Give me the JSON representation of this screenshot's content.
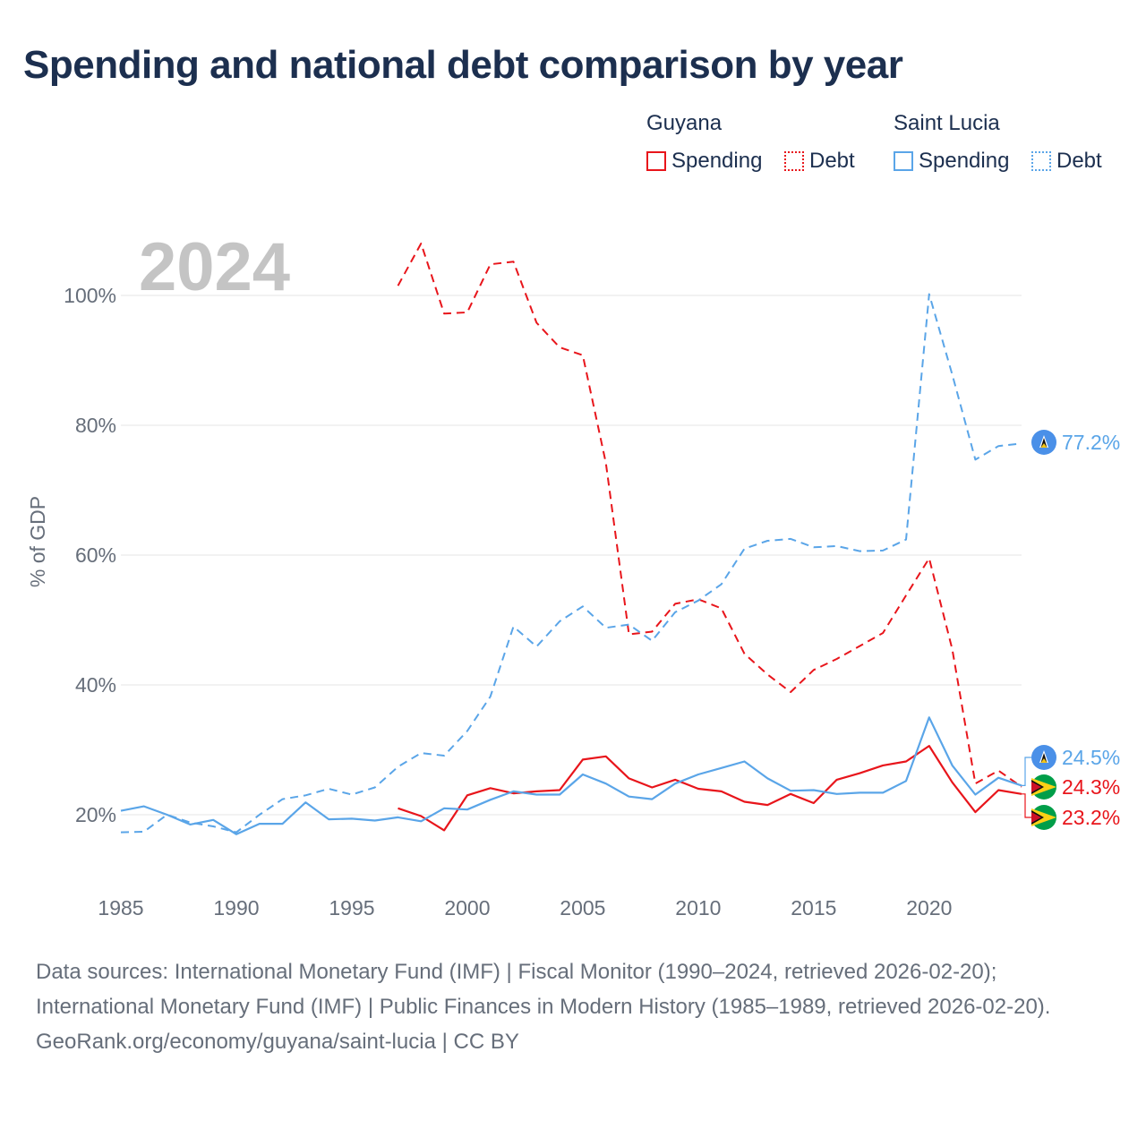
{
  "title": "Spending and national debt comparison by year",
  "legend": {
    "groups": [
      {
        "country": "Guyana",
        "spending_label": "Spending",
        "debt_label": "Debt",
        "color": "#e8151b"
      },
      {
        "country": "Saint Lucia",
        "spending_label": "Spending",
        "debt_label": "Debt",
        "color": "#5aa5e8"
      }
    ]
  },
  "year_watermark": "2024",
  "footer": {
    "sources": "Data sources: International Monetary Fund (IMF) | Fiscal Monitor (1990–2024, retrieved 2026-02-20); International Monetary Fund (IMF) | Public Finances in Modern History (1985–1989, retrieved 2026-02-20).",
    "credit": "GeoRank.org/economy/guyana/saint-lucia | CC BY"
  },
  "chart_data": {
    "type": "line",
    "title": "Spending and national debt comparison by year",
    "xlabel": "",
    "ylabel": "% of GDP",
    "xlim": [
      1985,
      2024
    ],
    "ylim": [
      10,
      110
    ],
    "x_ticks": [
      1985,
      1990,
      1995,
      2000,
      2005,
      2010,
      2015,
      2020
    ],
    "y_ticks": [
      20,
      40,
      60,
      80,
      100
    ],
    "y_tick_labels": [
      "20%",
      "40%",
      "60%",
      "80%",
      "100%"
    ],
    "grid": true,
    "series": [
      {
        "name": "Guyana Debt",
        "country": "Guyana",
        "measure": "Debt",
        "color": "#e8151b",
        "dash": true,
        "x": [
          1997,
          1998,
          1999,
          2000,
          2001,
          2002,
          2003,
          2004,
          2005,
          2006,
          2007,
          2008,
          2009,
          2010,
          2011,
          2012,
          2013,
          2014,
          2015,
          2016,
          2017,
          2018,
          2019,
          2020,
          2021,
          2022,
          2023,
          2024
        ],
        "values": [
          101.5,
          108.0,
          97.2,
          97.4,
          104.8,
          105.2,
          95.8,
          92.0,
          90.8,
          74.2,
          47.8,
          48.2,
          52.5,
          53.2,
          51.8,
          44.8,
          41.6,
          38.9,
          42.3,
          44.0,
          46.0,
          48.0,
          53.8,
          59.5,
          45.5,
          24.8,
          26.8,
          24.3
        ]
      },
      {
        "name": "Guyana Spending",
        "country": "Guyana",
        "measure": "Spending",
        "color": "#e8151b",
        "dash": false,
        "x": [
          1997,
          1998,
          1999,
          2000,
          2001,
          2002,
          2003,
          2004,
          2005,
          2006,
          2007,
          2008,
          2009,
          2010,
          2011,
          2012,
          2013,
          2014,
          2015,
          2016,
          2017,
          2018,
          2019,
          2020,
          2021,
          2022,
          2023,
          2024
        ],
        "values": [
          21.0,
          19.8,
          17.6,
          23.0,
          24.1,
          23.3,
          23.6,
          23.8,
          28.5,
          29.0,
          25.6,
          24.2,
          25.4,
          24.0,
          23.6,
          22.0,
          21.5,
          23.2,
          21.8,
          25.4,
          26.4,
          27.6,
          28.2,
          30.6,
          25.0,
          20.4,
          23.8,
          23.2
        ]
      },
      {
        "name": "Saint Lucia Debt",
        "country": "Saint Lucia",
        "measure": "Debt",
        "color": "#5aa5e8",
        "dash": true,
        "x": [
          1985,
          1986,
          1987,
          1988,
          1989,
          1990,
          1991,
          1992,
          1993,
          1994,
          1995,
          1996,
          1997,
          1998,
          1999,
          2000,
          2001,
          2002,
          2003,
          2004,
          2005,
          2006,
          2007,
          2008,
          2009,
          2010,
          2011,
          2012,
          2013,
          2014,
          2015,
          2016,
          2017,
          2018,
          2019,
          2020,
          2021,
          2022,
          2023,
          2024
        ],
        "values": [
          17.3,
          17.4,
          20.0,
          18.8,
          18.2,
          17.3,
          20.0,
          22.4,
          23.0,
          24.0,
          23.1,
          24.2,
          27.4,
          29.5,
          29.1,
          32.9,
          38.2,
          49.0,
          45.9,
          49.8,
          52.1,
          48.8,
          49.3,
          46.8,
          51.2,
          53.0,
          55.5,
          61.0,
          62.2,
          62.5,
          61.2,
          61.4,
          60.6,
          60.7,
          62.4,
          100.2,
          87.8,
          74.7,
          76.8,
          77.2
        ]
      },
      {
        "name": "Saint Lucia Spending",
        "country": "Saint Lucia",
        "measure": "Spending",
        "color": "#5aa5e8",
        "dash": false,
        "x": [
          1985,
          1986,
          1987,
          1988,
          1989,
          1990,
          1991,
          1992,
          1993,
          1994,
          1995,
          1996,
          1997,
          1998,
          1999,
          2000,
          2001,
          2002,
          2003,
          2004,
          2005,
          2006,
          2007,
          2008,
          2009,
          2010,
          2011,
          2012,
          2013,
          2014,
          2015,
          2016,
          2017,
          2018,
          2019,
          2020,
          2021,
          2022,
          2023,
          2024
        ],
        "values": [
          20.6,
          21.3,
          20.0,
          18.5,
          19.2,
          17.0,
          18.6,
          18.6,
          21.9,
          19.3,
          19.4,
          19.1,
          19.6,
          19.0,
          21.0,
          20.8,
          22.3,
          23.6,
          23.1,
          23.1,
          26.2,
          24.8,
          22.8,
          22.4,
          24.8,
          26.2,
          27.2,
          28.2,
          25.6,
          23.7,
          23.8,
          23.2,
          23.4,
          23.4,
          25.2,
          35.0,
          27.6,
          23.1,
          25.7,
          24.5
        ]
      }
    ],
    "end_labels": [
      {
        "series": "Saint Lucia Debt",
        "text": "77.2%",
        "color": "#5aa5e8",
        "flag": "saint-lucia"
      },
      {
        "series": "Saint Lucia Spending",
        "text": "24.5%",
        "color": "#5aa5e8",
        "flag": "saint-lucia"
      },
      {
        "series": "Guyana Debt",
        "text": "24.3%",
        "color": "#e8151b",
        "flag": "guyana"
      },
      {
        "series": "Guyana Spending",
        "text": "23.2%",
        "color": "#e8151b",
        "flag": "guyana"
      }
    ]
  }
}
